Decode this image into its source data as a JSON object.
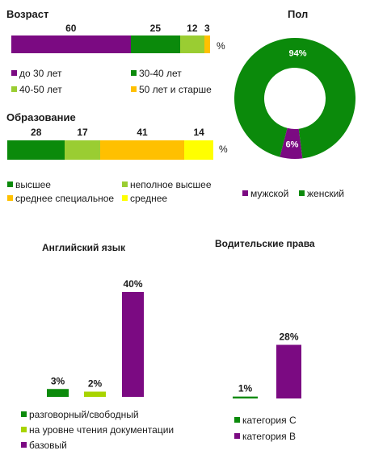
{
  "unit_sign": "%",
  "colors": {
    "purple": "#7b0a82",
    "green": "#0b8a0b",
    "light_green": "#9acd32",
    "orange": "#ffc000",
    "yellow": "#ffff00",
    "lime": "#a8d400"
  },
  "chart_data": [
    {
      "type": "bar",
      "stacked": true,
      "orientation": "horizontal",
      "title": "Возраст",
      "series": [
        {
          "name": "до 30 лет",
          "values": [
            60
          ],
          "label": "60",
          "color": "#7b0a82"
        },
        {
          "name": "30-40  лет",
          "values": [
            25
          ],
          "label": "25",
          "color": "#0b8a0b"
        },
        {
          "name": "40-50  лет",
          "values": [
            12
          ],
          "label": "12",
          "color": "#9acd32"
        },
        {
          "name": "50 лет и старше",
          "values": [
            3
          ],
          "label": "3",
          "color": "#ffc000"
        }
      ],
      "legend": "bottom"
    },
    {
      "type": "pie",
      "title": "Пол",
      "donut": true,
      "slices": [
        {
          "name": "мужской",
          "value": 6,
          "label": "6%",
          "color": "#7b0a82"
        },
        {
          "name": "женский",
          "value": 94,
          "label": "94%",
          "color": "#0b8a0b"
        }
      ],
      "legend": "bottom"
    },
    {
      "type": "bar",
      "stacked": true,
      "orientation": "horizontal",
      "title": "Образование",
      "series": [
        {
          "name": "высшее",
          "values": [
            28
          ],
          "label": "28",
          "color": "#0b8a0b"
        },
        {
          "name": "неполное высшее",
          "values": [
            17
          ],
          "label": "17",
          "color": "#9acd32"
        },
        {
          "name": "среднее специальное",
          "values": [
            41
          ],
          "label": "41",
          "color": "#ffc000"
        },
        {
          "name": "среднее",
          "values": [
            14
          ],
          "label": "14",
          "color": "#ffff00"
        }
      ],
      "legend": "bottom"
    },
    {
      "type": "bar",
      "title": "Английский язык",
      "ylim": [
        0,
        40
      ],
      "series": [
        {
          "name": "разговорный/свободный",
          "values": [
            3
          ],
          "label": "3%",
          "color": "#0b8a0b"
        },
        {
          "name": "на уровне чтения документации",
          "values": [
            2
          ],
          "label": "2%",
          "color": "#a8d400"
        },
        {
          "name": "базовый",
          "values": [
            40
          ],
          "label": "40%",
          "color": "#7b0a82"
        }
      ],
      "legend": "bottom"
    },
    {
      "type": "bar",
      "title": "Водительские права",
      "ylim": [
        0,
        40
      ],
      "series": [
        {
          "name": "категория С",
          "values": [
            1
          ],
          "label": "1%",
          "color": "#0b8a0b"
        },
        {
          "name": "категория В",
          "values": [
            28
          ],
          "label": "28%",
          "color": "#7b0a82"
        }
      ],
      "legend": "bottom"
    }
  ]
}
